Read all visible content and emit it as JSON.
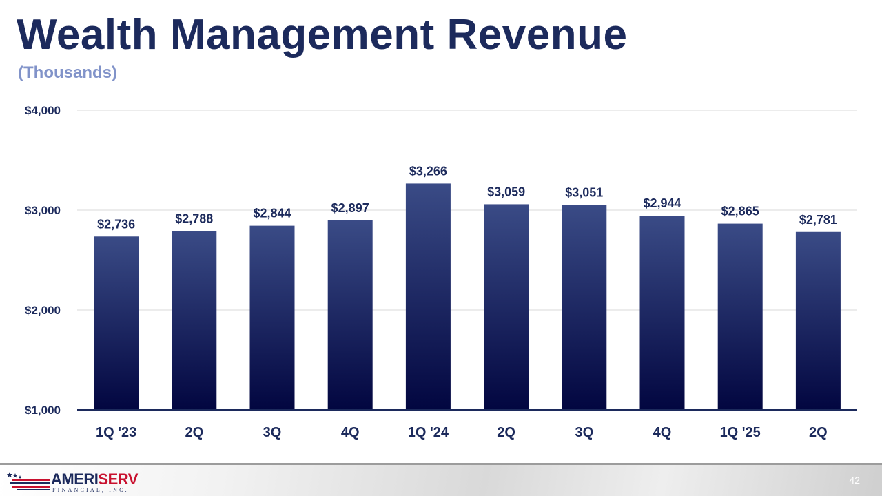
{
  "slide": {
    "title": "Wealth Management Revenue",
    "subtitle": "(Thousands)",
    "page_number": "42"
  },
  "logo": {
    "name_part1": "AMERI",
    "name_part2": "SERV",
    "tagline": "FINANCIAL, INC."
  },
  "colors": {
    "title": "#1c2a5c",
    "subtitle": "#8193c9",
    "bar_top": "#3a4b86",
    "bar_bottom": "#020640",
    "baseline": "#1c2a5c",
    "gridline": "#d9d9d9",
    "text": "#1c2a5c",
    "logo_red": "#c8102e"
  },
  "chart_data": {
    "type": "bar",
    "title": "Wealth Management Revenue",
    "subtitle": "(Thousands)",
    "xlabel": "",
    "ylabel": "",
    "ylim": [
      1000,
      4000
    ],
    "y_ticks": [
      1000,
      2000,
      3000,
      4000
    ],
    "y_tick_labels": [
      "$1,000",
      "$2,000",
      "$3,000",
      "$4,000"
    ],
    "grid": true,
    "legend": "none",
    "categories": [
      "1Q '23",
      "2Q",
      "3Q",
      "4Q",
      "1Q '24",
      "2Q",
      "3Q",
      "4Q",
      "1Q '25",
      "2Q"
    ],
    "values": [
      2736,
      2788,
      2844,
      2897,
      3266,
      3059,
      3051,
      2944,
      2865,
      2781
    ],
    "value_labels": [
      "$2,736",
      "$2,788",
      "$2,844",
      "$2,897",
      "$3,266",
      "$3,059",
      "$3,051",
      "$2,944",
      "$2,865",
      "$2,781"
    ]
  }
}
